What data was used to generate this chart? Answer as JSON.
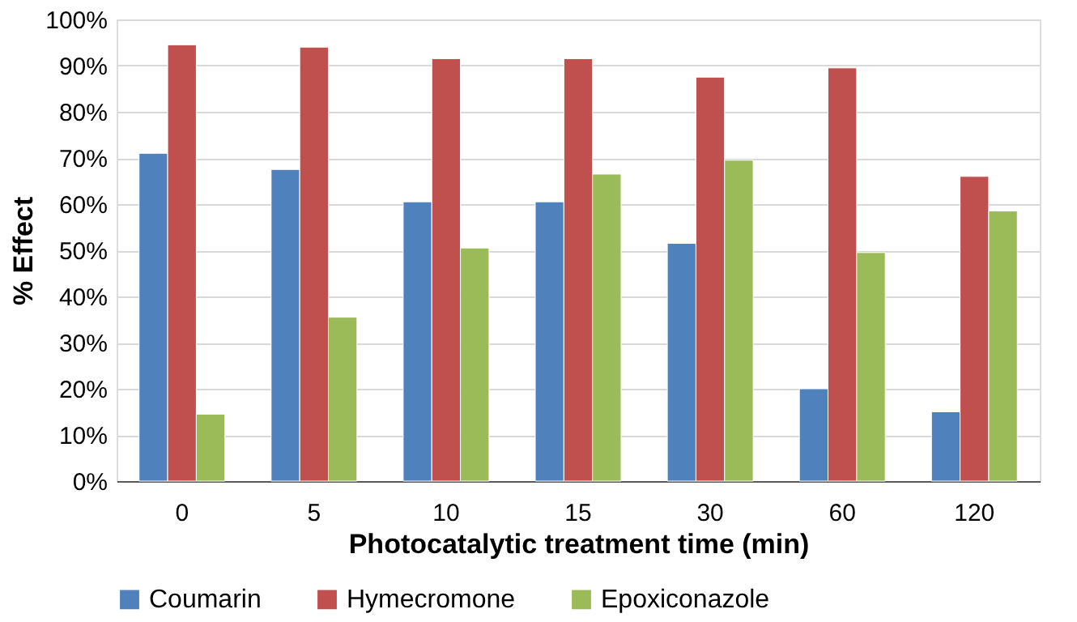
{
  "chart_data": {
    "type": "bar",
    "xlabel": "Photocatalytic treatment time (min)",
    "ylabel": "% Effect",
    "categories": [
      "0",
      "5",
      "10",
      "15",
      "30",
      "60",
      "120"
    ],
    "series": [
      {
        "name": "Coumarin",
        "color": "#4f81bd",
        "values": [
          71,
          67.5,
          60.5,
          60.5,
          51.5,
          20,
          15
        ]
      },
      {
        "name": "Hymecromone",
        "color": "#c0504d",
        "values": [
          94.5,
          94,
          91.5,
          91.5,
          87.5,
          89.5,
          66
        ]
      },
      {
        "name": "Epoxiconazole",
        "color": "#9bbb59",
        "values": [
          14.5,
          35.5,
          50.5,
          66.5,
          69.5,
          49.5,
          58.5
        ]
      }
    ],
    "ylim": [
      0,
      100
    ],
    "yticks": [
      {
        "value": 0,
        "label": "0%"
      },
      {
        "value": 10,
        "label": "10%"
      },
      {
        "value": 20,
        "label": "20%"
      },
      {
        "value": 30,
        "label": "30%"
      },
      {
        "value": 40,
        "label": "40%"
      },
      {
        "value": 50,
        "label": "50%"
      },
      {
        "value": 60,
        "label": "60%"
      },
      {
        "value": 70,
        "label": "70%"
      },
      {
        "value": 80,
        "label": "80%"
      },
      {
        "value": 90,
        "label": "90%"
      },
      {
        "value": 100,
        "label": "100%"
      }
    ],
    "grid": "y",
    "legend": "bottom"
  }
}
